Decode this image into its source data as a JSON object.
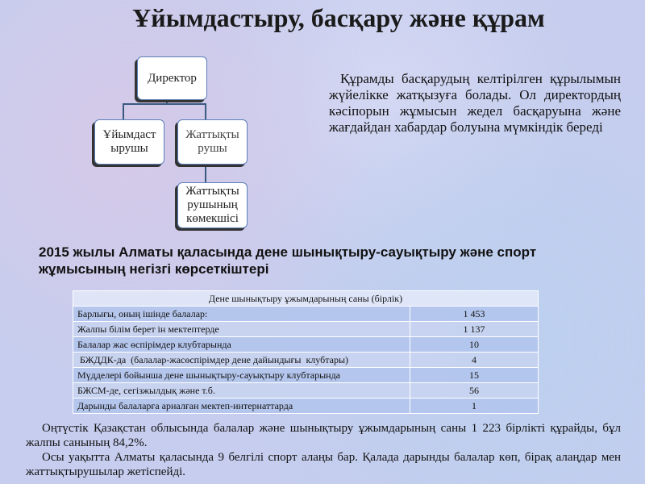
{
  "title": "Ұйымдастыру, басқару және құрам",
  "org_chart": {
    "director": "Директор",
    "organizer": "Ұйымдаст ырушы",
    "trainer": "Жаттықты рушы",
    "assistant": "Жаттықты рушының көмекшісі"
  },
  "description": "Құрамды басқарудың келтірілген құрылымын жүйелікке жатқызуға болады. Ол директордың кәсіпорын жұмысын жедел басқаруына және жағдайдан хабардар болуына мүмкіндік береді",
  "section_heading": "2015 жылы Алматы қаласында дене шынықтыру-сауықтыру және спорт жұмысының негізгі көрсеткіштері",
  "table": {
    "header": "Дене шынықтыру ұжымдарының саны  (бірлік)",
    "rows": [
      {
        "label": "Барлығы, оның ішінде балалар:",
        "value": "1 453"
      },
      {
        "label": "Жалпы білім берет ін мектептерде",
        "value": "1 137"
      },
      {
        "label": "Балалар жас өспірімдер клубтарында",
        "value": "10"
      },
      {
        "label": " БЖДДК-да  (балалар-жасөспірімдер дене дайындығы  клубтары)",
        "value": "4"
      },
      {
        "label": "Мүдделері бойынша дене шынықтыру-сауықтыру клубтарында",
        "value": "15"
      },
      {
        "label": "БЖСМ-де, сегізжылдық және т.б.",
        "value": "56"
      },
      {
        "label": "Дарынды балаларға арналған мектеп-интернаттарда",
        "value": "1"
      }
    ]
  },
  "paragraphs": [
    "Оңтүстік Қазақстан облысында балалар және шынықтыру  ұжымдарының саны 1 223 бірлікті құрайды, бұл  жалпы санының 84,2%.",
    "Осы уақытта Алматы қаласында 9 белгілі спорт алаңы бар. Қалада дарынды балалар көп, бірақ алаңдар мен жаттықтырушылар жетіспейді."
  ]
}
